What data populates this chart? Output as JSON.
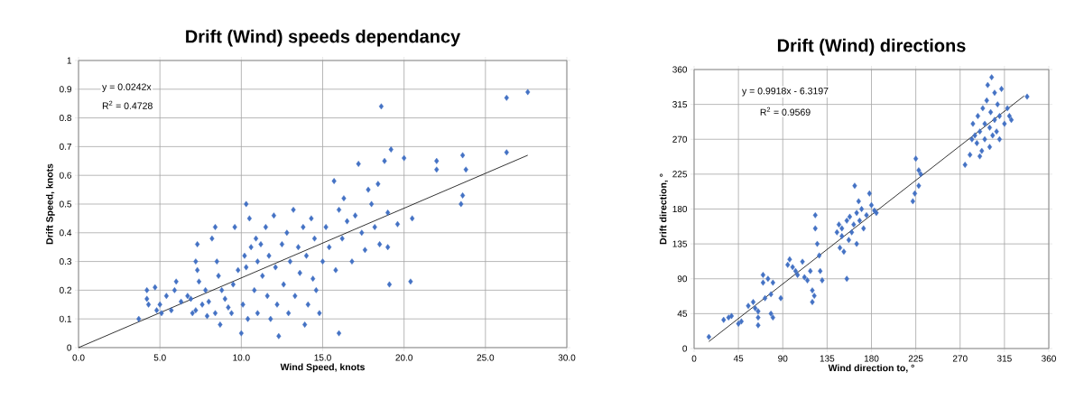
{
  "chart_data": [
    {
      "type": "scatter",
      "title": "Drift (Wind) speeds dependancy",
      "xlabel": "Wind Speed, knots",
      "ylabel": "Drift Speed, knots",
      "annotations": [
        "y = 0.0242x",
        "R$^{2}$ = 0.4728"
      ],
      "xlim": [
        0,
        30
      ],
      "ylim": [
        0,
        1
      ],
      "xticks": [
        {
          "value": 0,
          "label": "0.0"
        },
        {
          "value": 5,
          "label": "5.0"
        },
        {
          "value": 10,
          "label": "10.0"
        },
        {
          "value": 15,
          "label": "15.0"
        },
        {
          "value": 20,
          "label": "20.0"
        },
        {
          "value": 25,
          "label": "25.0"
        },
        {
          "value": 30,
          "label": "30.0"
        }
      ],
      "yticks": [
        0,
        0.1,
        0.2,
        0.3,
        0.4,
        0.5,
        0.6,
        0.7,
        0.8,
        0.9,
        1
      ],
      "grid": true,
      "series": [
        {
          "color": "#4472c4",
          "marker": "diamond",
          "x": [
            3.7,
            4.2,
            4.2,
            4.3,
            4.7,
            4.8,
            5.0,
            5.1,
            5.4,
            5.7,
            5.9,
            6.0,
            6.3,
            6.7,
            6.9,
            7.0,
            7.2,
            7.2,
            7.3,
            7.3,
            7.4,
            7.6,
            7.8,
            7.9,
            8.0,
            8.2,
            8.4,
            8.4,
            8.5,
            8.6,
            8.7,
            8.8,
            9.0,
            9.2,
            9.4,
            9.5,
            9.6,
            9.8,
            10.0,
            10.1,
            10.2,
            10.3,
            10.3,
            10.4,
            10.5,
            10.6,
            10.8,
            10.9,
            11.0,
            11.0,
            11.2,
            11.3,
            11.5,
            11.6,
            11.7,
            11.8,
            12.0,
            12.1,
            12.2,
            12.3,
            12.5,
            12.6,
            12.8,
            12.9,
            13.0,
            13.2,
            13.3,
            13.5,
            13.6,
            13.8,
            13.9,
            14.0,
            14.1,
            14.3,
            14.4,
            14.5,
            14.6,
            14.8,
            15.0,
            15.2,
            15.4,
            15.7,
            15.8,
            16.0,
            16.0,
            16.2,
            16.3,
            16.5,
            16.8,
            17.0,
            17.2,
            17.4,
            17.6,
            17.8,
            18.0,
            18.2,
            18.4,
            18.5,
            18.6,
            18.8,
            19.0,
            19.1,
            19.2,
            19.0,
            19.6,
            20.0,
            20.4,
            20.5,
            22.0,
            22.0,
            23.5,
            23.6,
            23.6,
            23.8,
            26.3,
            26.3,
            27.6
          ],
          "values": [
            0.1,
            0.2,
            0.17,
            0.15,
            0.21,
            0.13,
            0.15,
            0.12,
            0.18,
            0.13,
            0.2,
            0.23,
            0.16,
            0.18,
            0.17,
            0.12,
            0.13,
            0.3,
            0.36,
            0.27,
            0.23,
            0.15,
            0.2,
            0.11,
            0.16,
            0.38,
            0.42,
            0.12,
            0.3,
            0.25,
            0.08,
            0.2,
            0.17,
            0.14,
            0.12,
            0.22,
            0.42,
            0.27,
            0.05,
            0.15,
            0.32,
            0.5,
            0.28,
            0.1,
            0.45,
            0.35,
            0.2,
            0.38,
            0.3,
            0.12,
            0.36,
            0.25,
            0.42,
            0.18,
            0.32,
            0.1,
            0.46,
            0.28,
            0.15,
            0.04,
            0.36,
            0.22,
            0.4,
            0.12,
            0.3,
            0.48,
            0.18,
            0.35,
            0.26,
            0.42,
            0.08,
            0.32,
            0.15,
            0.45,
            0.24,
            0.38,
            0.2,
            0.12,
            0.3,
            0.42,
            0.35,
            0.58,
            0.27,
            0.05,
            0.48,
            0.38,
            0.52,
            0.44,
            0.3,
            0.46,
            0.64,
            0.4,
            0.34,
            0.55,
            0.5,
            0.42,
            0.57,
            0.36,
            0.84,
            0.65,
            0.47,
            0.22,
            0.69,
            0.35,
            0.43,
            0.66,
            0.23,
            0.45,
            0.65,
            0.62,
            0.5,
            0.53,
            0.67,
            0.62,
            0.87,
            0.68,
            0.89
          ]
        },
        {
          "type": "line",
          "color": "#000000",
          "x": [
            0,
            27.6
          ],
          "values": [
            0,
            0.67
          ]
        }
      ]
    },
    {
      "type": "scatter",
      "title": "Drift (Wind) directions",
      "xlabel": "Wind direction to, °",
      "ylabel": "Drift direction, °",
      "annotations": [
        "y = 0.9918x  - 6.3197",
        "R$^{2}$ = 0.9569"
      ],
      "xlim": [
        0,
        360
      ],
      "ylim": [
        0,
        360
      ],
      "xticks": [
        0,
        45,
        90,
        135,
        180,
        225,
        270,
        315,
        360
      ],
      "yticks": [
        0,
        45,
        90,
        135,
        180,
        225,
        270,
        315,
        360
      ],
      "grid": true,
      "series": [
        {
          "color": "#4472c4",
          "marker": "diamond",
          "x": [
            15,
            30,
            35,
            38,
            45,
            48,
            55,
            60,
            62,
            65,
            65,
            65,
            70,
            70,
            72,
            75,
            78,
            78,
            80,
            80,
            88,
            95,
            97,
            100,
            103,
            105,
            110,
            112,
            115,
            118,
            120,
            120,
            122,
            123,
            123,
            125,
            127,
            128,
            130,
            145,
            147,
            148,
            150,
            150,
            152,
            155,
            155,
            157,
            158,
            160,
            162,
            163,
            165,
            165,
            167,
            168,
            170,
            172,
            175,
            178,
            180,
            183,
            185,
            222,
            224,
            225,
            228,
            230,
            228,
            275,
            280,
            282,
            283,
            285,
            287,
            288,
            290,
            290,
            292,
            293,
            295,
            295,
            297,
            298,
            300,
            300,
            301,
            302,
            303,
            305,
            305,
            307,
            308,
            310,
            310,
            312,
            315,
            318,
            320,
            322,
            338
          ],
          "values": [
            15,
            37,
            40,
            42,
            32,
            35,
            55,
            60,
            52,
            48,
            40,
            30,
            85,
            95,
            65,
            90,
            70,
            45,
            40,
            85,
            65,
            108,
            115,
            105,
            100,
            95,
            112,
            92,
            88,
            100,
            75,
            60,
            68,
            172,
            155,
            135,
            120,
            100,
            88,
            150,
            160,
            130,
            155,
            145,
            125,
            165,
            90,
            140,
            170,
            150,
            160,
            210,
            175,
            135,
            190,
            165,
            180,
            155,
            172,
            200,
            185,
            178,
            175,
            190,
            200,
            245,
            230,
            225,
            210,
            237,
            250,
            270,
            290,
            275,
            265,
            300,
            280,
            248,
            255,
            310,
            290,
            270,
            320,
            340,
            285,
            260,
            305,
            350,
            275,
            295,
            330,
            280,
            315,
            300,
            270,
            335,
            290,
            310,
            300,
            295,
            325
          ]
        },
        {
          "type": "line",
          "color": "#000000",
          "x": [
            15,
            335
          ],
          "values": [
            9,
            326
          ]
        }
      ]
    }
  ]
}
